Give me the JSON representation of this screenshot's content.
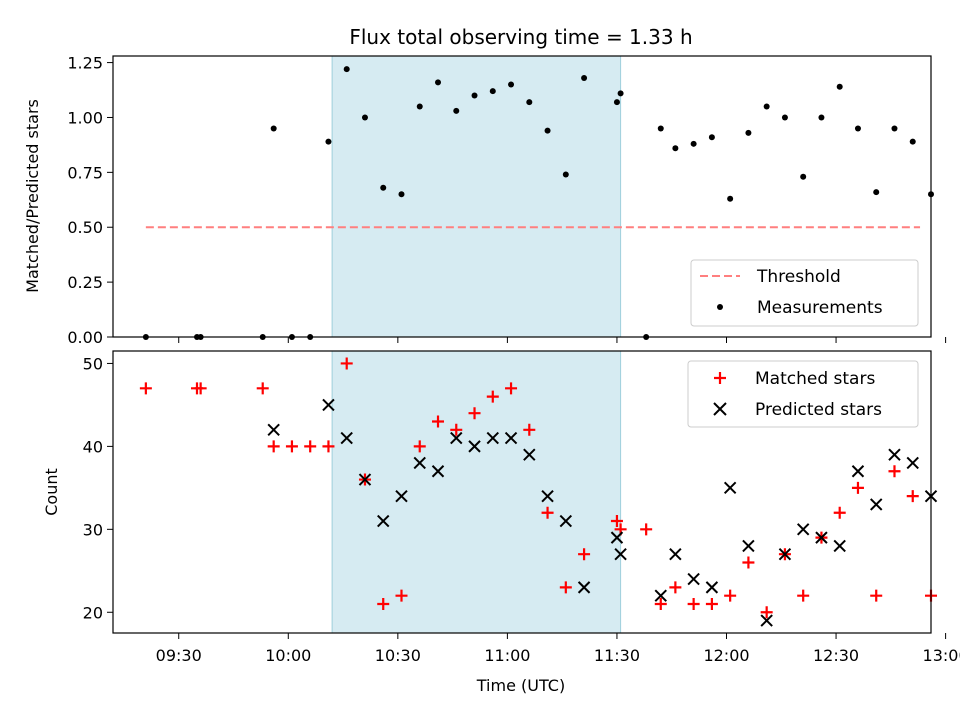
{
  "chart_data": [
    {
      "type": "scatter",
      "title": "Flux total observing time = 1.33 h",
      "xlabel": "",
      "ylabel": "Matched/Predicted stars",
      "ylim": [
        0,
        1.28
      ],
      "xlim": [
        "09:12",
        "12:56"
      ],
      "grid": false,
      "legend_position": "bottom-right",
      "highlight_span": [
        "10:12",
        "11:31"
      ],
      "yticks": [
        "0.00",
        "0.25",
        "0.50",
        "0.75",
        "1.00",
        "1.25"
      ],
      "series": [
        {
          "name": "Threshold",
          "kind": "line",
          "style": "dashed",
          "color": "#ff7f7f",
          "x": [
            "09:21",
            "12:53"
          ],
          "y": [
            0.5,
            0.5
          ]
        },
        {
          "name": "Measurements",
          "kind": "scatter",
          "color": "#000000",
          "x": [
            "09:21",
            "09:35",
            "09:36",
            "09:53",
            "09:56",
            "10:01",
            "10:06",
            "10:11",
            "10:16",
            "10:21",
            "10:26",
            "10:31",
            "10:36",
            "10:41",
            "10:46",
            "10:51",
            "10:56",
            "11:01",
            "11:06",
            "11:11",
            "11:16",
            "11:21",
            "11:30",
            "11:31",
            "11:38",
            "11:42",
            "11:46",
            "11:51",
            "11:56",
            "12:01",
            "12:06",
            "12:11",
            "12:16",
            "12:21",
            "12:26",
            "12:31",
            "12:36",
            "12:41",
            "12:46",
            "12:51",
            "12:56"
          ],
          "y": [
            0,
            0,
            0,
            0,
            0.95,
            0,
            0,
            0.89,
            1.22,
            1.0,
            0.68,
            0.65,
            1.05,
            1.16,
            1.03,
            1.1,
            1.12,
            1.15,
            1.07,
            0.94,
            0.74,
            1.18,
            1.07,
            1.11,
            0,
            0.95,
            0.86,
            0.88,
            0.91,
            0.63,
            0.93,
            1.05,
            1.0,
            0.73,
            1.0,
            1.14,
            0.95,
            0.66,
            0.95,
            0.89,
            0.65
          ]
        }
      ]
    },
    {
      "type": "scatter",
      "title": "",
      "xlabel": "Time (UTC)",
      "ylabel": "Count",
      "ylim": [
        17.5,
        51.5
      ],
      "xlim": [
        "09:12",
        "12:56"
      ],
      "grid": false,
      "legend_position": "top-right",
      "highlight_span": [
        "10:12",
        "11:31"
      ],
      "yticks": [
        "20",
        "30",
        "40",
        "50"
      ],
      "xticks": [
        "09:30",
        "10:00",
        "10:30",
        "11:00",
        "11:30",
        "12:00",
        "12:30",
        "13:00"
      ],
      "series": [
        {
          "name": "Matched stars",
          "marker": "+",
          "color": "#ff0000",
          "x": [
            "09:21",
            "09:35",
            "09:36",
            "09:53",
            "09:56",
            "10:01",
            "10:06",
            "10:11",
            "10:16",
            "10:21",
            "10:26",
            "10:31",
            "10:36",
            "10:41",
            "10:46",
            "10:51",
            "10:56",
            "11:01",
            "11:06",
            "11:11",
            "11:16",
            "11:21",
            "11:30",
            "11:31",
            "11:38",
            "11:42",
            "11:46",
            "11:51",
            "11:56",
            "12:01",
            "12:06",
            "12:11",
            "12:16",
            "12:21",
            "12:26",
            "12:31",
            "12:36",
            "12:41",
            "12:46",
            "12:51",
            "12:56"
          ],
          "y": [
            47,
            47,
            47,
            47,
            40,
            40,
            40,
            40,
            50,
            36,
            21,
            22,
            40,
            43,
            42,
            44,
            46,
            47,
            42,
            32,
            23,
            27,
            31,
            30,
            30,
            21,
            23,
            21,
            21,
            22,
            26,
            20,
            27,
            22,
            29,
            32,
            35,
            22,
            37,
            34,
            22
          ]
        },
        {
          "name": "Predicted stars",
          "marker": "x",
          "color": "#000000",
          "x": [
            "09:56",
            "10:11",
            "10:16",
            "10:21",
            "10:26",
            "10:31",
            "10:36",
            "10:41",
            "10:46",
            "10:51",
            "10:56",
            "11:01",
            "11:06",
            "11:11",
            "11:16",
            "11:21",
            "11:30",
            "11:31",
            "11:42",
            "11:46",
            "11:51",
            "11:56",
            "12:01",
            "12:06",
            "12:11",
            "12:16",
            "12:21",
            "12:26",
            "12:31",
            "12:36",
            "12:41",
            "12:46",
            "12:51",
            "12:56"
          ],
          "y": [
            42,
            45,
            41,
            36,
            31,
            34,
            38,
            37,
            41,
            40,
            41,
            41,
            39,
            34,
            31,
            23,
            29,
            27,
            22,
            27,
            24,
            23,
            35,
            28,
            19,
            27,
            30,
            29,
            28,
            37,
            33,
            39,
            38,
            34
          ]
        }
      ]
    }
  ]
}
